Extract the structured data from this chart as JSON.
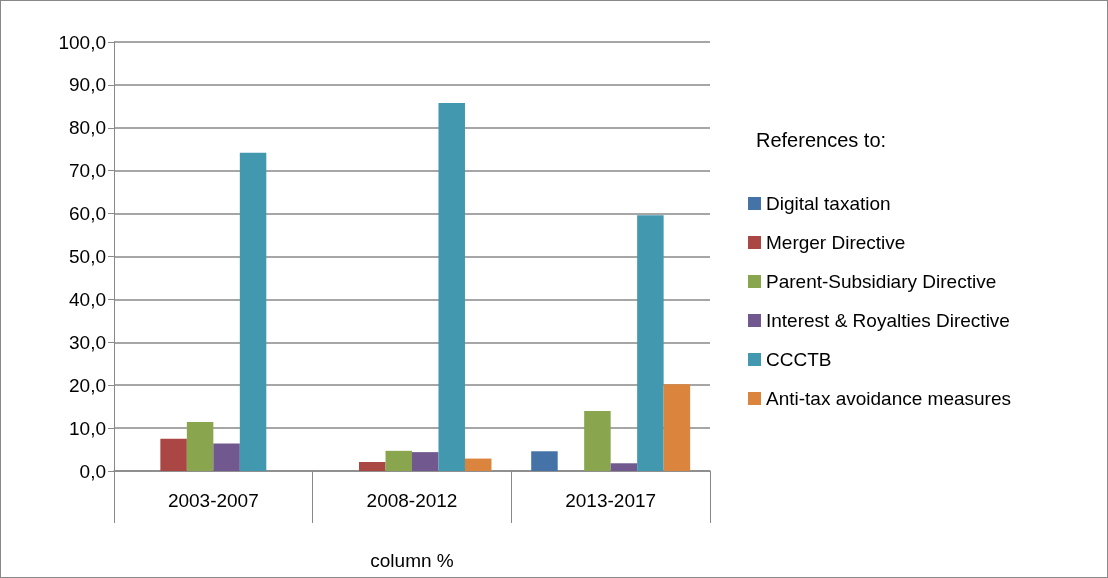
{
  "chart_data": {
    "type": "bar",
    "xlabel": "column %",
    "legend_title": "References to:",
    "categories": [
      "2003-2007",
      "2008-2012",
      "2013-2017"
    ],
    "series": [
      {
        "name": "Digital taxation",
        "color": "#4572a7",
        "values": [
          0,
          0,
          4.6
        ]
      },
      {
        "name": "Merger Directive",
        "color": "#aa4643",
        "values": [
          7.5,
          2.1,
          0
        ]
      },
      {
        "name": "Parent-Subsidiary Directive",
        "color": "#89a54e",
        "values": [
          11.4,
          4.7,
          14.0
        ]
      },
      {
        "name": "Interest & Royalties Directive",
        "color": "#71588f",
        "values": [
          6.4,
          4.4,
          1.8
        ]
      },
      {
        "name": "CCCTB",
        "color": "#4198af",
        "values": [
          74.2,
          85.8,
          59.6
        ]
      },
      {
        "name": "Anti-tax avoidance measures",
        "color": "#db843d",
        "values": [
          0,
          2.9,
          20.2
        ]
      }
    ],
    "ylim": [
      0,
      100
    ],
    "yticks": [
      {
        "value": 0,
        "label": "0,0"
      },
      {
        "value": 10,
        "label": "10,0"
      },
      {
        "value": 20,
        "label": "20,0"
      },
      {
        "value": 30,
        "label": "30,0"
      },
      {
        "value": 40,
        "label": "40,0"
      },
      {
        "value": 50,
        "label": "50,0"
      },
      {
        "value": 60,
        "label": "60,0"
      },
      {
        "value": 70,
        "label": "70,0"
      },
      {
        "value": 80,
        "label": "80,0"
      },
      {
        "value": 90,
        "label": "90,0"
      },
      {
        "value": 100,
        "label": "100,0"
      }
    ],
    "grid": "y",
    "legend": "right"
  }
}
